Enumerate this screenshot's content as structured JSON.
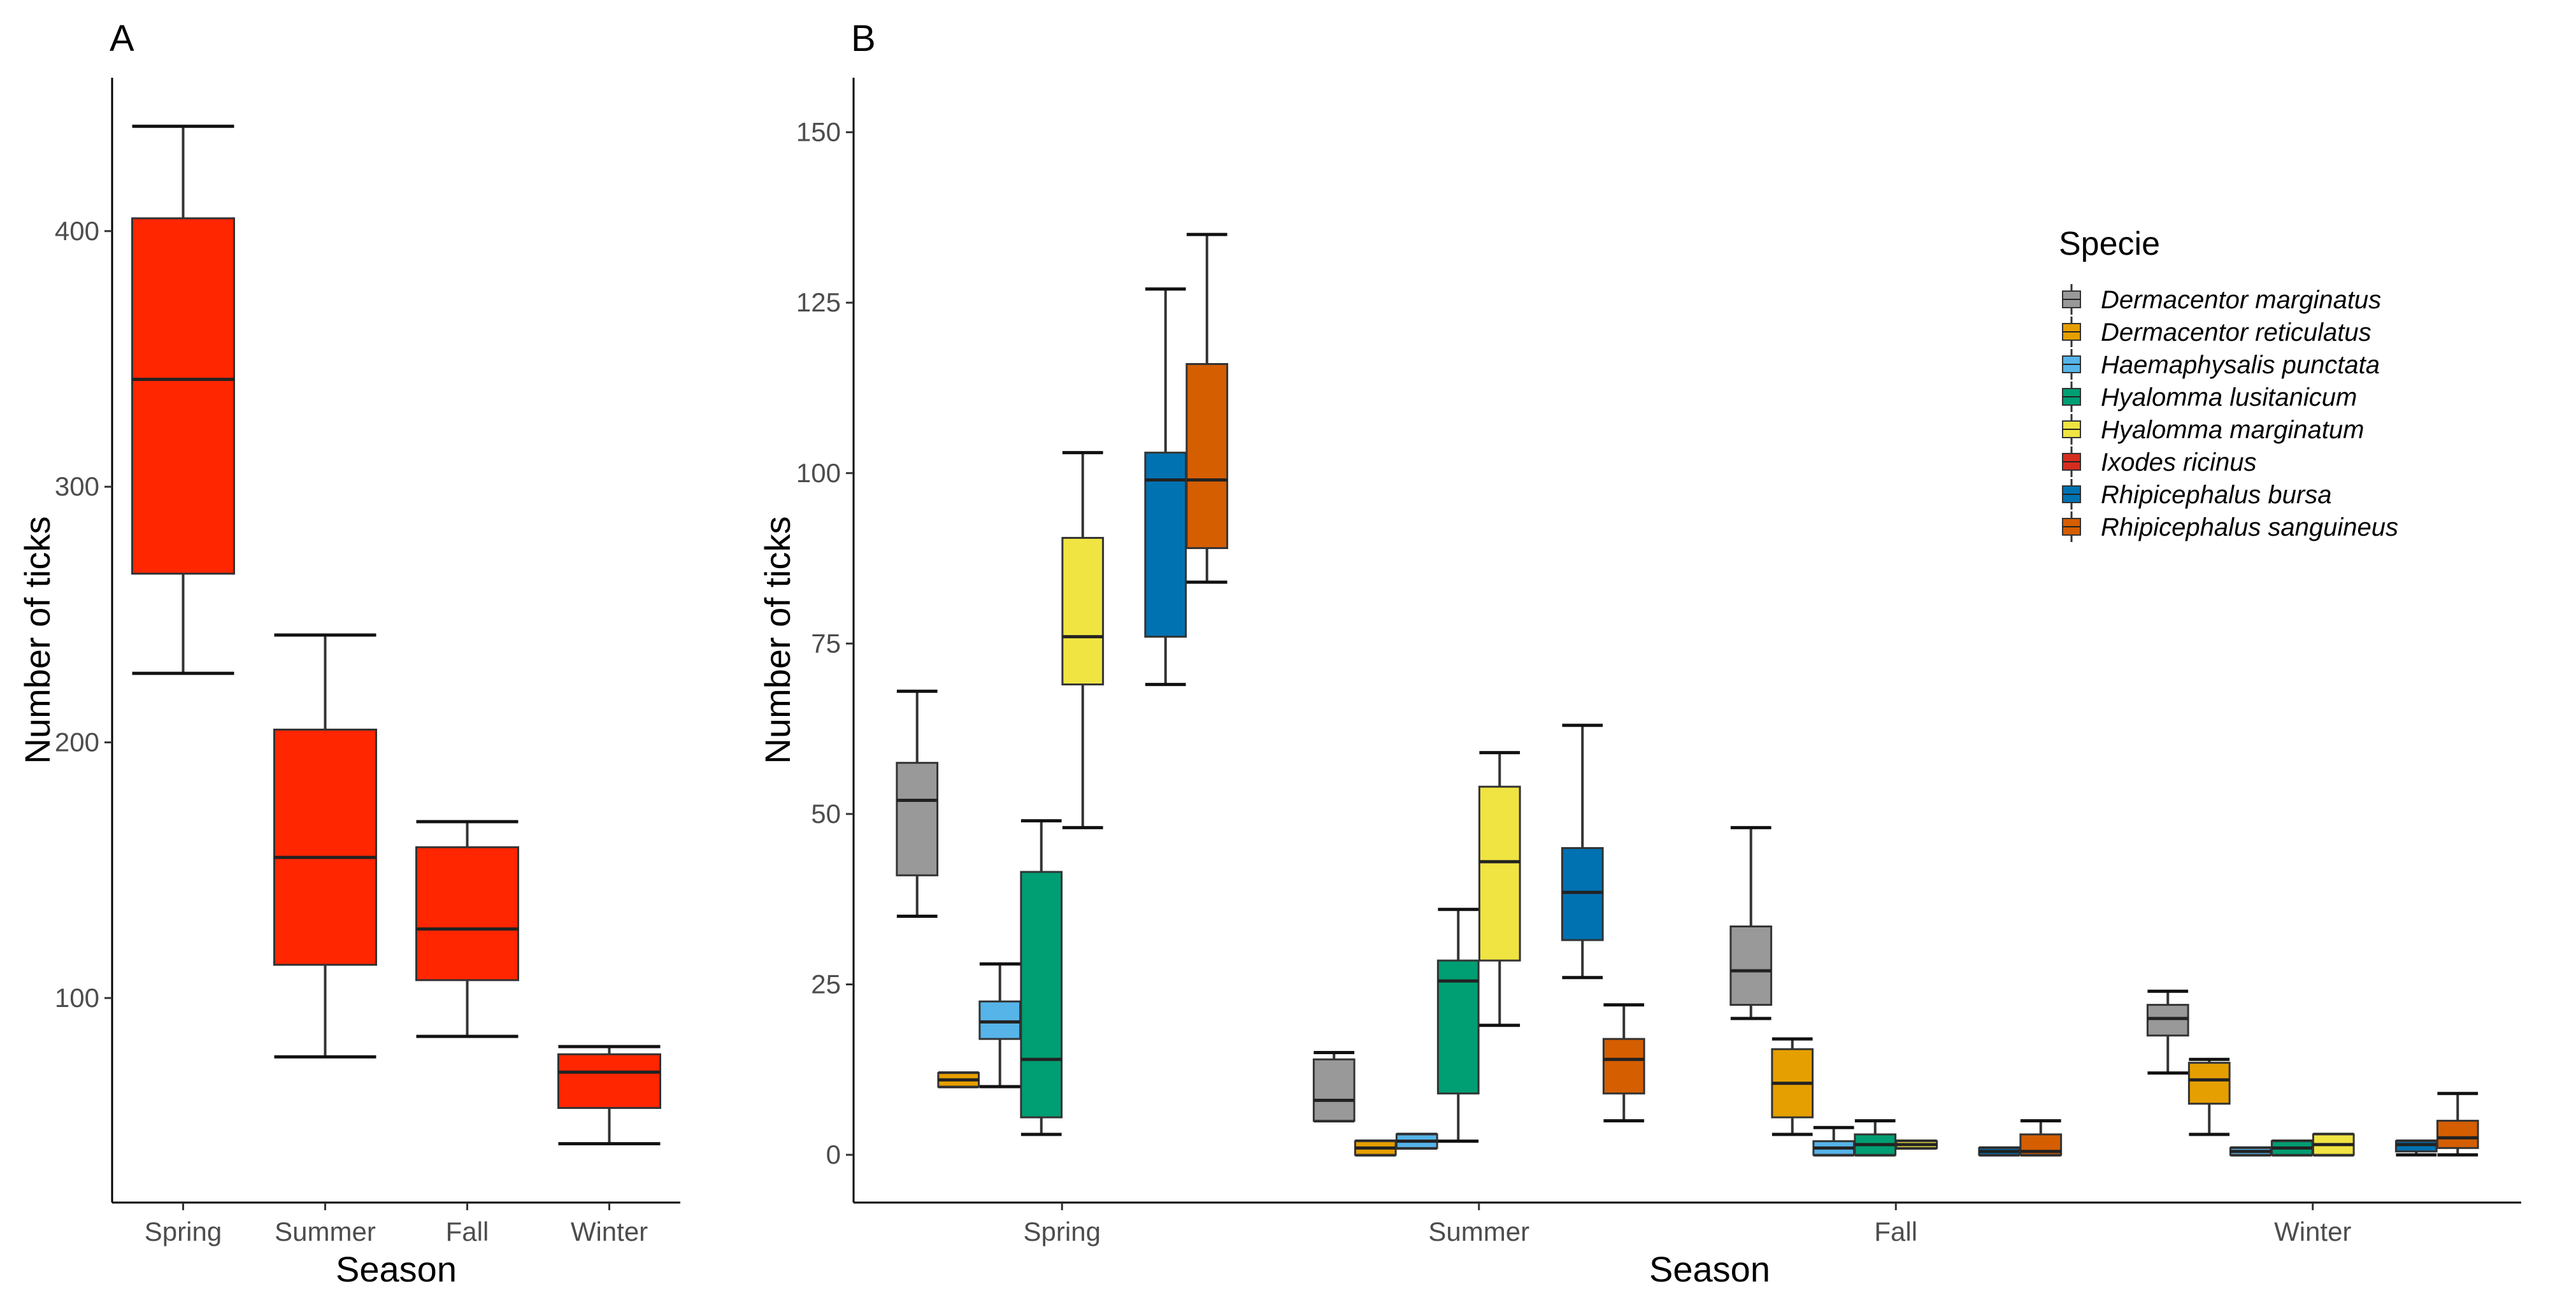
{
  "chart_data": [
    {
      "panel": "A",
      "type": "boxplot",
      "xlabel": "Season",
      "ylabel": "Number of ticks",
      "categories": [
        "Spring",
        "Summer",
        "Fall",
        "Winter"
      ],
      "yticks": [
        100,
        200,
        300,
        400
      ],
      "ylim": [
        20,
        460
      ],
      "series": [
        {
          "name": "Ixodes ricinus",
          "color": "#FF2600",
          "boxes": [
            {
              "min": 227,
              "q1": 266,
              "median": 342,
              "q3": 405,
              "max": 441
            },
            {
              "min": 77,
              "q1": 113,
              "median": 155,
              "q3": 205,
              "max": 242
            },
            {
              "min": 85,
              "q1": 107,
              "median": 127,
              "q3": 159,
              "max": 169
            },
            {
              "min": 43,
              "q1": 57,
              "median": 71,
              "q3": 78,
              "max": 81
            }
          ]
        }
      ]
    },
    {
      "panel": "B",
      "type": "boxplot",
      "xlabel": "Season",
      "ylabel": "Number of ticks",
      "categories": [
        "Spring",
        "Summer",
        "Fall",
        "Winter"
      ],
      "yticks": [
        0,
        25,
        50,
        75,
        100,
        125,
        150
      ],
      "ylim": [
        -7,
        158
      ],
      "legend_title": "Specie",
      "legend_position": "right",
      "series": [
        {
          "name": "Dermacentor marginatus",
          "color": "#999999",
          "boxes": [
            {
              "min": 35,
              "q1": 41,
              "median": 52,
              "q3": 57.5,
              "max": 68
            },
            {
              "min": 5,
              "q1": 5,
              "median": 8,
              "q3": 14,
              "max": 15
            },
            {
              "min": 20,
              "q1": 22,
              "median": 27,
              "q3": 33.5,
              "max": 48
            },
            {
              "min": 12,
              "q1": 17.5,
              "median": 20,
              "q3": 22,
              "max": 24
            }
          ]
        },
        {
          "name": "Dermacentor reticulatus",
          "color": "#E69F00",
          "boxes": [
            {
              "min": 10,
              "q1": 10,
              "median": 11,
              "q3": 12,
              "max": 12
            },
            {
              "min": 0,
              "q1": 0,
              "median": 1,
              "q3": 2,
              "max": 2
            },
            {
              "min": 3,
              "q1": 5.5,
              "median": 10.5,
              "q3": 15.5,
              "max": 17
            },
            {
              "min": 3,
              "q1": 7.5,
              "median": 11,
              "q3": 13.5,
              "max": 14
            }
          ]
        },
        {
          "name": "Haemaphysalis punctata",
          "color": "#56B4E9",
          "boxes": [
            {
              "min": 10,
              "q1": 17,
              "median": 19.5,
              "q3": 22.5,
              "max": 28
            },
            {
              "min": 1,
              "q1": 1,
              "median": 2,
              "q3": 3,
              "max": 3
            },
            {
              "min": 0,
              "q1": 0,
              "median": 1,
              "q3": 2,
              "max": 4
            },
            {
              "min": 0,
              "q1": 0,
              "median": 0.5,
              "q3": 1,
              "max": 1
            }
          ]
        },
        {
          "name": "Hyalomma lusitanicum",
          "color": "#009E73",
          "boxes": [
            {
              "min": 3,
              "q1": 5.5,
              "median": 14,
              "q3": 41.5,
              "max": 49
            },
            {
              "min": 2,
              "q1": 9,
              "median": 25.5,
              "q3": 28.5,
              "max": 36
            },
            {
              "min": 0,
              "q1": 0,
              "median": 1.5,
              "q3": 3,
              "max": 5
            },
            {
              "min": 0,
              "q1": 0,
              "median": 1,
              "q3": 2,
              "max": 2
            }
          ]
        },
        {
          "name": "Hyalomma marginatum",
          "color": "#F0E442",
          "boxes": [
            {
              "min": 48,
              "q1": 69,
              "median": 76,
              "q3": 90.5,
              "max": 103
            },
            {
              "min": 19,
              "q1": 28.5,
              "median": 43,
              "q3": 54,
              "max": 59
            },
            {
              "min": 1,
              "q1": 1,
              "median": 1.5,
              "q3": 2,
              "max": 2
            },
            {
              "min": 0,
              "q1": 0,
              "median": 1.5,
              "q3": 3,
              "max": 3
            }
          ]
        },
        {
          "name": "Ixodes ricinus",
          "color": "#D62D20",
          "boxes": [
            null,
            null,
            null,
            null
          ]
        },
        {
          "name": "Rhipicephalus bursa",
          "color": "#0072B2",
          "boxes": [
            {
              "min": 69,
              "q1": 76,
              "median": 99,
              "q3": 103,
              "max": 127
            },
            {
              "min": 26,
              "q1": 31.5,
              "median": 38.5,
              "q3": 45,
              "max": 63
            },
            {
              "min": 0,
              "q1": 0,
              "median": 0.5,
              "q3": 1,
              "max": 1
            },
            {
              "min": 0,
              "q1": 0.5,
              "median": 1.5,
              "q3": 2,
              "max": 2
            }
          ]
        },
        {
          "name": "Rhipicephalus sanguineus",
          "color": "#D55E00",
          "boxes": [
            {
              "min": 84,
              "q1": 89,
              "median": 99,
              "q3": 116,
              "max": 135
            },
            {
              "min": 5,
              "q1": 9,
              "median": 14,
              "q3": 17,
              "max": 22
            },
            {
              "min": 0,
              "q1": 0,
              "median": 0.5,
              "q3": 3,
              "max": 5
            },
            {
              "min": 0,
              "q1": 1,
              "median": 2.5,
              "q3": 5,
              "max": 9
            }
          ]
        }
      ]
    }
  ]
}
